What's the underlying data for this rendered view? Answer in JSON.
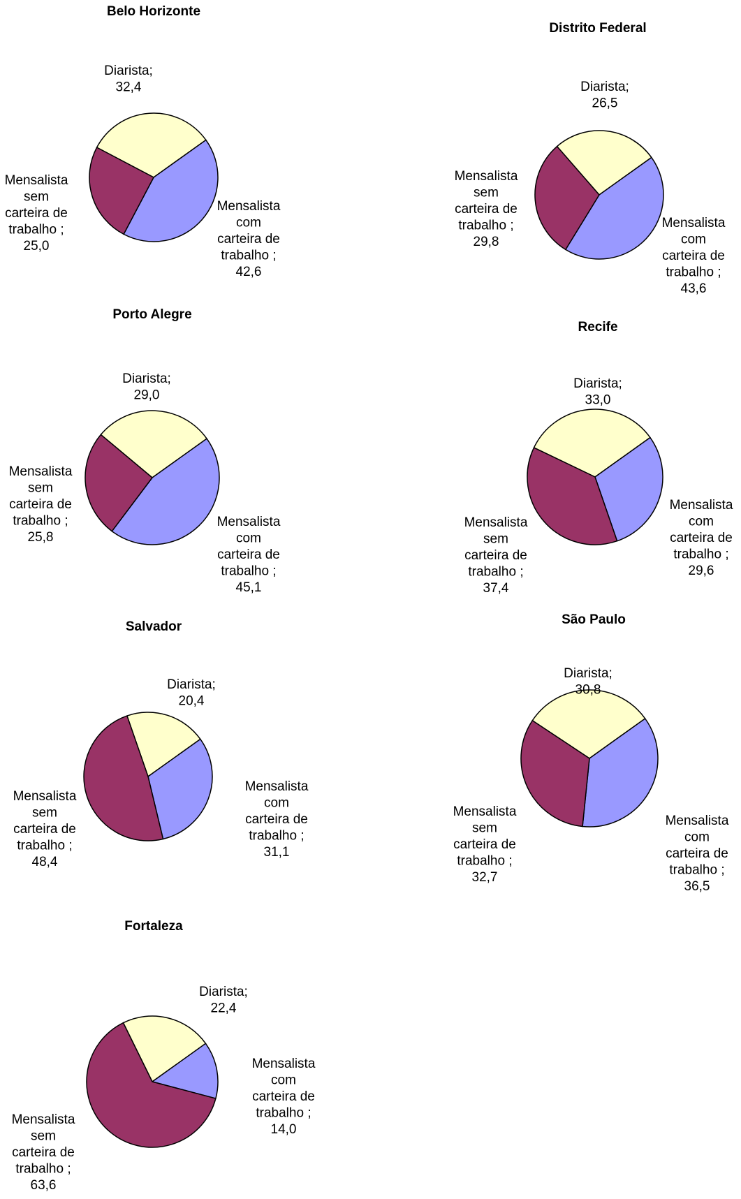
{
  "colors": {
    "diarista": "#ffffcc",
    "com_carteira": "#9999ff",
    "sem_carteira": "#993366",
    "stroke": "#000000"
  },
  "chart_data": [
    {
      "type": "pie",
      "title": "Belo Horizonte",
      "slices": [
        {
          "name": "Diarista;",
          "value": 32.4,
          "value_label": "32,4"
        },
        {
          "name": "Mensalista com carteira de trabalho ;",
          "value": 42.6,
          "value_label": "42,6"
        },
        {
          "name": "Mensalista sem carteira de trabalho ;",
          "value": 25.0,
          "value_label": "25,0"
        }
      ]
    },
    {
      "type": "pie",
      "title": "Distrito Federal",
      "slices": [
        {
          "name": "Diarista;",
          "value": 26.5,
          "value_label": "26,5"
        },
        {
          "name": "Mensalista com carteira de trabalho ;",
          "value": 43.6,
          "value_label": "43,6"
        },
        {
          "name": "Mensalista sem carteira de trabalho ;",
          "value": 29.8,
          "value_label": "29,8"
        }
      ]
    },
    {
      "type": "pie",
      "title": "Porto Alegre",
      "slices": [
        {
          "name": "Diarista;",
          "value": 29.0,
          "value_label": "29,0"
        },
        {
          "name": "Mensalista com carteira de trabalho ;",
          "value": 45.1,
          "value_label": "45,1"
        },
        {
          "name": "Mensalista sem carteira de trabalho ;",
          "value": 25.8,
          "value_label": "25,8"
        }
      ]
    },
    {
      "type": "pie",
      "title": "Recife",
      "slices": [
        {
          "name": "Diarista;",
          "value": 33.0,
          "value_label": "33,0"
        },
        {
          "name": "Mensalista com carteira de trabalho ;",
          "value": 29.6,
          "value_label": "29,6"
        },
        {
          "name": "Mensalista sem carteira de trabalho ;",
          "value": 37.4,
          "value_label": "37,4"
        }
      ]
    },
    {
      "type": "pie",
      "title": "Salvador",
      "slices": [
        {
          "name": "Diarista;",
          "value": 20.4,
          "value_label": "20,4"
        },
        {
          "name": "Mensalista com carteira de trabalho ;",
          "value": 31.1,
          "value_label": "31,1"
        },
        {
          "name": "Mensalista sem carteira de trabalho ;",
          "value": 48.4,
          "value_label": "48,4"
        }
      ]
    },
    {
      "type": "pie",
      "title": "São Paulo",
      "slices": [
        {
          "name": "Diarista;",
          "value": 30.8,
          "value_label": "30,8"
        },
        {
          "name": "Mensalista com carteira de trabalho ;",
          "value": 36.5,
          "value_label": "36,5"
        },
        {
          "name": "Mensalista sem carteira de trabalho ;",
          "value": 32.7,
          "value_label": "32,7"
        }
      ]
    },
    {
      "type": "pie",
      "title": "Fortaleza",
      "slices": [
        {
          "name": "Diarista;",
          "value": 22.4,
          "value_label": "22,4"
        },
        {
          "name": "Mensalista com carteira de trabalho ;",
          "value": 14.0,
          "value_label": "14,0"
        },
        {
          "name": "Mensalista sem carteira de trabalho ;",
          "value": 63.6,
          "value_label": "63,6"
        }
      ]
    }
  ]
}
